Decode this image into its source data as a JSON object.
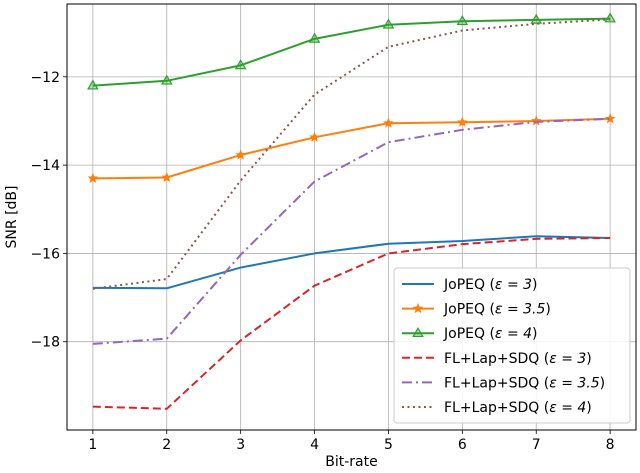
{
  "chart_data": {
    "type": "line",
    "xlabel": "Bit-rate",
    "ylabel": "SNR [dB]",
    "x": [
      1,
      2,
      3,
      4,
      5,
      6,
      7,
      8
    ],
    "xlim": [
      0.65,
      8.35
    ],
    "ylim": [
      -20.0,
      -10.35
    ],
    "xticks": [
      1,
      2,
      3,
      4,
      5,
      6,
      7,
      8
    ],
    "yticks": [
      -18,
      -16,
      -14,
      -12
    ],
    "ytick_labels": [
      "−18",
      "−16",
      "−14",
      "−12"
    ],
    "grid": true,
    "legend_position": "lower-right",
    "series": [
      {
        "name": "JoPEQ (ε = 3)",
        "color": "#1f77b4",
        "style": "solid",
        "marker": "none",
        "values": [
          -16.78,
          -16.79,
          -16.32,
          -16.0,
          -15.78,
          -15.72,
          -15.61,
          -15.65
        ]
      },
      {
        "name": "JoPEQ (ε = 3.5)",
        "color": "#ff7f0e",
        "style": "solid",
        "marker": "star",
        "values": [
          -14.3,
          -14.28,
          -13.77,
          -13.37,
          -13.05,
          -13.03,
          -13.0,
          -12.95
        ]
      },
      {
        "name": "JoPEQ (ε = 4)",
        "color": "#2ca02c",
        "style": "solid",
        "marker": "triangle",
        "values": [
          -12.2,
          -12.09,
          -11.74,
          -11.14,
          -10.82,
          -10.74,
          -10.71,
          -10.68
        ]
      },
      {
        "name": "FL+Lap+SDQ (ε = 3)",
        "color": "#d62728",
        "style": "dashed",
        "marker": "none",
        "values": [
          -19.47,
          -19.52,
          -17.97,
          -16.73,
          -16.0,
          -15.79,
          -15.67,
          -15.65
        ]
      },
      {
        "name": "FL+Lap+SDQ (ε = 3.5)",
        "color": "#9467bd",
        "style": "dashdot",
        "marker": "none",
        "values": [
          -18.05,
          -17.93,
          -16.03,
          -14.37,
          -13.48,
          -13.2,
          -13.02,
          -12.95
        ]
      },
      {
        "name": "FL+Lap+SDQ (ε = 4)",
        "color": "#8c564b",
        "style": "dotted",
        "marker": "none",
        "values": [
          -16.8,
          -16.58,
          -14.35,
          -12.4,
          -11.32,
          -10.95,
          -10.8,
          -10.7
        ]
      }
    ],
    "legend": [
      {
        "prefix": "JoPEQ (",
        "param": "ε = 3",
        "suffix": ")"
      },
      {
        "prefix": "JoPEQ (",
        "param": "ε = 3.5",
        "suffix": ")"
      },
      {
        "prefix": "JoPEQ (",
        "param": "ε = 4",
        "suffix": ")"
      },
      {
        "prefix": "FL+Lap+SDQ (",
        "param": "ε = 3",
        "suffix": ")"
      },
      {
        "prefix": "FL+Lap+SDQ (",
        "param": "ε = 3.5",
        "suffix": ")"
      },
      {
        "prefix": "FL+Lap+SDQ (",
        "param": "ε = 4",
        "suffix": ")"
      }
    ]
  }
}
